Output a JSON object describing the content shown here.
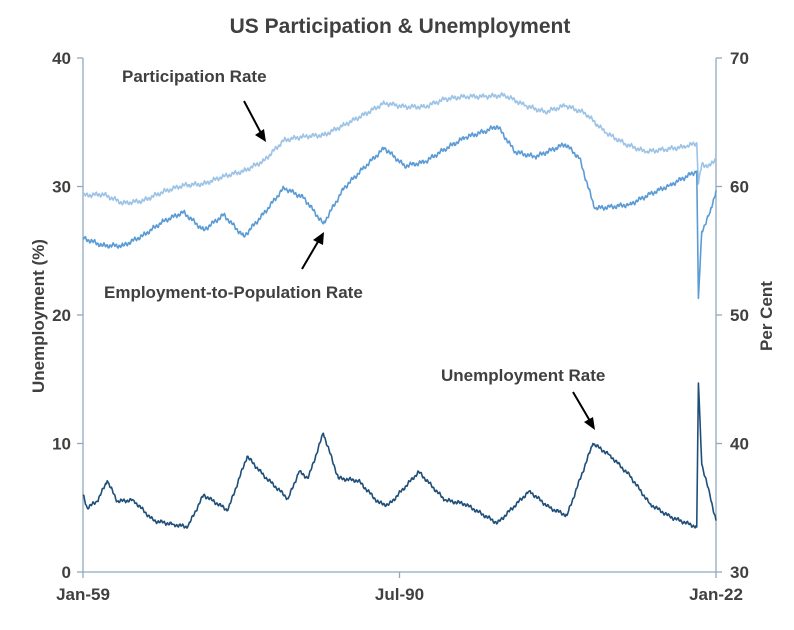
{
  "chart_data": {
    "type": "line",
    "title": "US Participation & Unemployment",
    "ylabel": "Unemployment (%)",
    "y2label": "Per Cent",
    "ylim": [
      0,
      40
    ],
    "y2lim": [
      30,
      70
    ],
    "yticks": [
      "0",
      "10",
      "20",
      "30",
      "40"
    ],
    "y2ticks": [
      "30",
      "40",
      "50",
      "60",
      "70"
    ],
    "xlim": [
      "1959-01",
      "2022-01"
    ],
    "xticks": [
      {
        "label": "Jan-59",
        "date": "1959-01"
      },
      {
        "label": "Jul-90",
        "date": "1990-07"
      },
      {
        "label": "Jan-22",
        "date": "2022-01"
      }
    ],
    "grid": false,
    "legend": "none",
    "annotations": [
      {
        "text": "Participation Rate",
        "series": "Participation Rate"
      },
      {
        "text": "Employment-to-Population Rate",
        "series": "Employment-to-Population Rate"
      },
      {
        "text": "Unemployment Rate",
        "series": "Unemployment Rate"
      }
    ],
    "series": [
      {
        "name": "Participation Rate",
        "axis": "right",
        "color": "#9dc3e6",
        "points": [
          [
            "1959-01",
            59.3
          ],
          [
            "1961-01",
            59.4
          ],
          [
            "1963-01",
            58.7
          ],
          [
            "1965-01",
            58.9
          ],
          [
            "1967-01",
            59.6
          ],
          [
            "1969-01",
            60.1
          ],
          [
            "1971-01",
            60.2
          ],
          [
            "1973-01",
            60.8
          ],
          [
            "1975-01",
            61.2
          ],
          [
            "1977-01",
            62.0
          ],
          [
            "1979-01",
            63.6
          ],
          [
            "1981-01",
            63.9
          ],
          [
            "1983-01",
            64.0
          ],
          [
            "1985-01",
            64.8
          ],
          [
            "1987-01",
            65.6
          ],
          [
            "1989-01",
            66.5
          ],
          [
            "1991-01",
            66.2
          ],
          [
            "1993-01",
            66.2
          ],
          [
            "1995-01",
            66.8
          ],
          [
            "1997-01",
            67.0
          ],
          [
            "1999-01",
            67.0
          ],
          [
            "2001-01",
            67.1
          ],
          [
            "2003-01",
            66.3
          ],
          [
            "2005-01",
            65.8
          ],
          [
            "2007-01",
            66.3
          ],
          [
            "2009-01",
            65.7
          ],
          [
            "2011-01",
            64.2
          ],
          [
            "2013-01",
            63.3
          ],
          [
            "2015-01",
            62.7
          ],
          [
            "2017-01",
            62.9
          ],
          [
            "2019-01",
            63.1
          ],
          [
            "2020-02",
            63.4
          ],
          [
            "2020-04",
            60.2
          ],
          [
            "2020-08",
            61.7
          ],
          [
            "2021-06",
            61.6
          ],
          [
            "2022-01",
            62.2
          ]
        ]
      },
      {
        "name": "Employment-to-Population Rate",
        "axis": "right",
        "color": "#5b9bd5",
        "points": [
          [
            "1959-01",
            56.0
          ],
          [
            "1961-01",
            55.4
          ],
          [
            "1963-01",
            55.4
          ],
          [
            "1965-01",
            56.2
          ],
          [
            "1967-01",
            57.3
          ],
          [
            "1969-01",
            58.0
          ],
          [
            "1971-01",
            56.6
          ],
          [
            "1973-01",
            57.8
          ],
          [
            "1975-01",
            56.1
          ],
          [
            "1977-01",
            57.9
          ],
          [
            "1979-01",
            59.9
          ],
          [
            "1981-01",
            59.1
          ],
          [
            "1982-12",
            57.1
          ],
          [
            "1985-01",
            59.9
          ],
          [
            "1987-01",
            61.5
          ],
          [
            "1989-01",
            63.0
          ],
          [
            "1991-01",
            61.6
          ],
          [
            "1993-01",
            61.9
          ],
          [
            "1995-01",
            62.9
          ],
          [
            "1997-01",
            63.8
          ],
          [
            "1999-01",
            64.3
          ],
          [
            "2000-04",
            64.7
          ],
          [
            "2002-01",
            62.7
          ],
          [
            "2004-01",
            62.3
          ],
          [
            "2007-01",
            63.3
          ],
          [
            "2008-06",
            62.2
          ],
          [
            "2009-12",
            58.3
          ],
          [
            "2011-06",
            58.4
          ],
          [
            "2013-06",
            58.6
          ],
          [
            "2015-06",
            59.4
          ],
          [
            "2017-06",
            60.1
          ],
          [
            "2020-02",
            61.2
          ],
          [
            "2020-04",
            51.3
          ],
          [
            "2020-08",
            56.5
          ],
          [
            "2021-06",
            58.0
          ],
          [
            "2022-01",
            59.7
          ]
        ]
      },
      {
        "name": "Unemployment Rate",
        "axis": "left",
        "color": "#1f4e79",
        "points": [
          [
            "1959-01",
            6.0
          ],
          [
            "1959-06",
            5.0
          ],
          [
            "1960-06",
            5.5
          ],
          [
            "1961-06",
            7.1
          ],
          [
            "1962-06",
            5.5
          ],
          [
            "1964-01",
            5.6
          ],
          [
            "1966-01",
            4.0
          ],
          [
            "1968-01",
            3.7
          ],
          [
            "1969-06",
            3.5
          ],
          [
            "1971-01",
            6.0
          ],
          [
            "1973-06",
            4.8
          ],
          [
            "1975-05",
            9.0
          ],
          [
            "1977-01",
            7.5
          ],
          [
            "1979-06",
            5.7
          ],
          [
            "1980-07",
            7.8
          ],
          [
            "1981-06",
            7.3
          ],
          [
            "1982-12",
            10.8
          ],
          [
            "1984-06",
            7.3
          ],
          [
            "1986-06",
            7.1
          ],
          [
            "1988-06",
            5.4
          ],
          [
            "1989-06",
            5.2
          ],
          [
            "1992-06",
            7.8
          ],
          [
            "1995-01",
            5.6
          ],
          [
            "1997-01",
            5.3
          ],
          [
            "2000-04",
            3.8
          ],
          [
            "2003-06",
            6.3
          ],
          [
            "2005-06",
            5.0
          ],
          [
            "2007-03",
            4.4
          ],
          [
            "2009-10",
            10.0
          ],
          [
            "2011-06",
            9.1
          ],
          [
            "2013-06",
            7.5
          ],
          [
            "2015-06",
            5.3
          ],
          [
            "2017-06",
            4.3
          ],
          [
            "2020-02",
            3.5
          ],
          [
            "2020-04",
            14.7
          ],
          [
            "2020-08",
            8.4
          ],
          [
            "2021-06",
            5.9
          ],
          [
            "2022-01",
            4.0
          ]
        ]
      }
    ]
  }
}
